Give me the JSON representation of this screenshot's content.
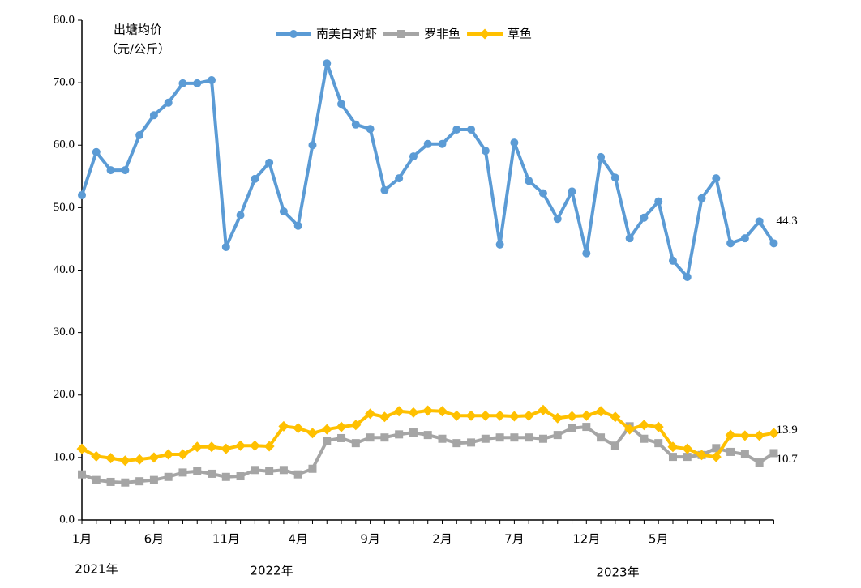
{
  "chart_data": {
    "type": "line",
    "y_label": [
      "出塘均价",
      "（元/公斤）"
    ],
    "categories": [
      "1月",
      null,
      null,
      null,
      null,
      "6月",
      null,
      null,
      null,
      null,
      "11月",
      null,
      null,
      null,
      null,
      "4月",
      null,
      null,
      null,
      null,
      "9月",
      null,
      null,
      null,
      null,
      "2月",
      null,
      null,
      null,
      null,
      "7月",
      null,
      null,
      null,
      null,
      "12月",
      null,
      null,
      null,
      null,
      "5月",
      null,
      null,
      null,
      null,
      null,
      null,
      null,
      null
    ],
    "year_labels": [
      "2021年",
      "2022年",
      "2023年"
    ],
    "ylim": [
      0,
      80
    ],
    "yticks": [
      {
        "value": 0,
        "label": "0.0"
      },
      {
        "value": 10,
        "label": "10.0"
      },
      {
        "value": 20,
        "label": "20.0"
      },
      {
        "value": 30,
        "label": "30.0"
      },
      {
        "value": 40,
        "label": "40.0"
      },
      {
        "value": 50,
        "label": "50.0"
      },
      {
        "value": 60,
        "label": "60.0"
      },
      {
        "value": 70,
        "label": "70.0"
      },
      {
        "value": 80,
        "label": "80.0"
      }
    ],
    "grid": false,
    "legend": "top",
    "series": [
      {
        "name": "南美白对虾",
        "color": "#5b9bd5",
        "marker": "circle",
        "values": [
          52.0,
          58.9,
          56.0,
          56.0,
          61.6,
          64.8,
          66.8,
          69.9,
          69.9,
          70.4,
          43.7,
          48.8,
          54.6,
          57.2,
          49.4,
          47.1,
          60.0,
          73.1,
          66.6,
          63.3,
          62.6,
          52.8,
          54.7,
          58.2,
          60.2,
          60.2,
          62.5,
          62.5,
          59.1,
          44.1,
          60.4,
          54.3,
          52.3,
          48.2,
          52.6,
          42.7,
          58.1,
          54.8,
          45.1,
          48.4,
          51.0,
          41.5,
          38.9,
          51.5,
          54.7,
          44.3,
          45.1,
          47.8,
          44.3
        ]
      },
      {
        "name": "罗非鱼",
        "color": "#a5a5a5",
        "marker": "square",
        "values": [
          7.3,
          6.4,
          6.1,
          6.0,
          6.2,
          6.4,
          6.9,
          7.6,
          7.8,
          7.4,
          6.9,
          7.0,
          8.0,
          7.8,
          8.0,
          7.3,
          8.2,
          12.7,
          13.1,
          12.3,
          13.2,
          13.2,
          13.7,
          14.0,
          13.6,
          13.0,
          12.3,
          12.4,
          13.0,
          13.2,
          13.2,
          13.2,
          13.0,
          13.6,
          14.7,
          14.9,
          13.2,
          11.9,
          15.0,
          13.0,
          12.3,
          10.1,
          10.1,
          10.4,
          11.5,
          10.9,
          10.5,
          9.2,
          10.7
        ]
      },
      {
        "name": "草鱼",
        "color": "#ffc000",
        "marker": "diamond",
        "values": [
          11.4,
          10.2,
          9.9,
          9.5,
          9.7,
          10.0,
          10.5,
          10.5,
          11.7,
          11.7,
          11.4,
          11.9,
          11.9,
          11.8,
          15.0,
          14.7,
          13.9,
          14.5,
          14.9,
          15.2,
          17.0,
          16.5,
          17.4,
          17.2,
          17.5,
          17.4,
          16.7,
          16.7,
          16.7,
          16.7,
          16.6,
          16.7,
          17.6,
          16.3,
          16.6,
          16.7,
          17.4,
          16.5,
          14.5,
          15.2,
          14.9,
          11.7,
          11.4,
          10.4,
          10.1,
          13.6,
          13.5,
          13.5,
          13.9
        ]
      }
    ]
  }
}
